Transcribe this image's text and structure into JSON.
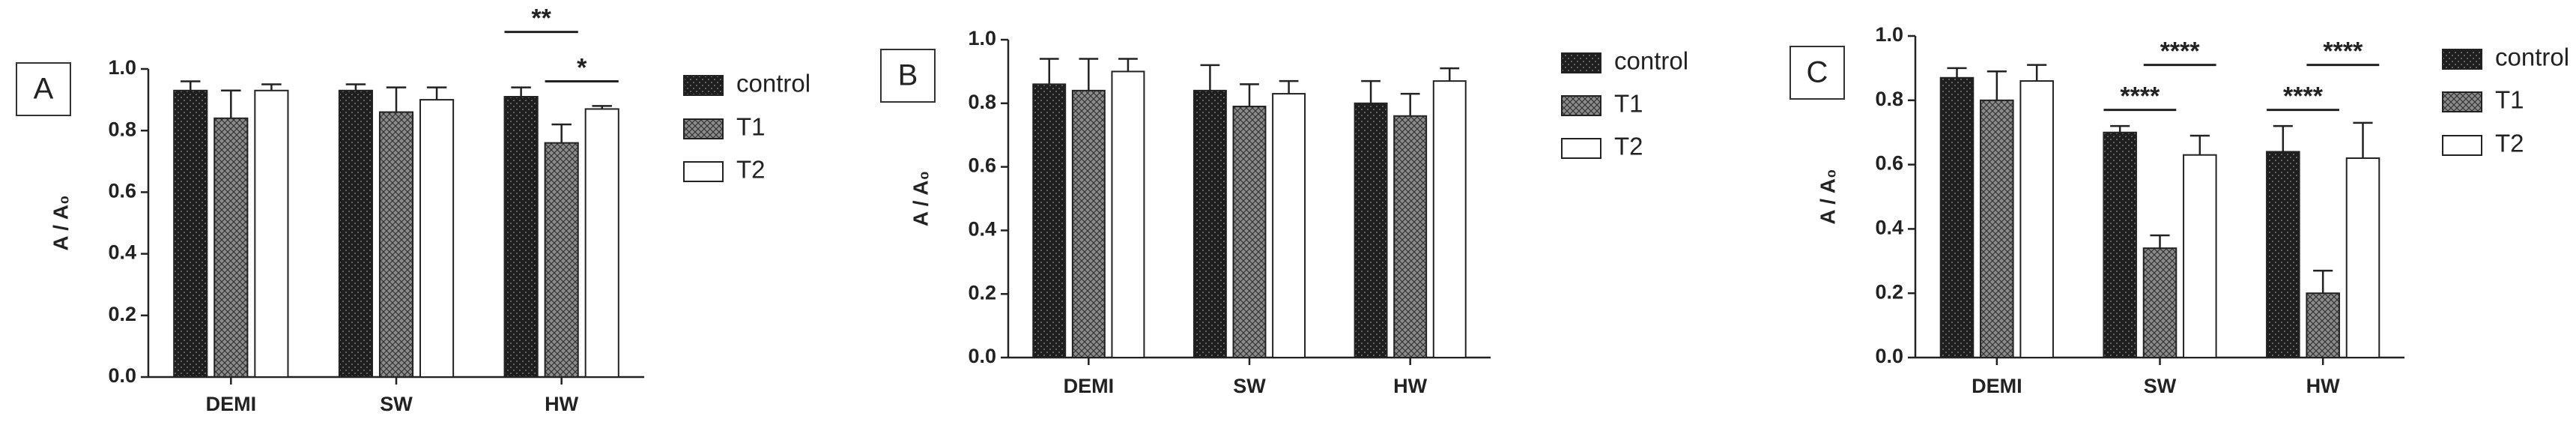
{
  "chart_data": [
    {
      "type": "bar",
      "label": "A",
      "ylabel": "A / A₀",
      "categories": [
        "DEMI",
        "SW",
        "HW"
      ],
      "series": [
        {
          "name": "control",
          "color": "#1e1e1e",
          "values": [
            0.93,
            0.93,
            0.91
          ],
          "errors": [
            0.03,
            0.02,
            0.03
          ]
        },
        {
          "name": "T1",
          "color": "#8c8c8c",
          "values": [
            0.84,
            0.86,
            0.76
          ],
          "errors": [
            0.09,
            0.08,
            0.06
          ]
        },
        {
          "name": "T2",
          "color": "#ffffff",
          "values": [
            0.93,
            0.9,
            0.87
          ],
          "errors": [
            0.02,
            0.04,
            0.01
          ]
        }
      ],
      "ylim": [
        0,
        1
      ],
      "yticks": [
        {
          "value": 0,
          "label": "0.0"
        },
        0.2,
        0.4,
        0.6,
        0.8,
        {
          "value": 1,
          "label": "1.0"
        }
      ],
      "annotations": [
        "**",
        "*"
      ]
    },
    {
      "type": "bar",
      "label": "B",
      "ylabel": "A / A₀",
      "categories": [
        "DEMI",
        "SW",
        "HW"
      ],
      "series": [
        {
          "name": "control",
          "color": "#1e1e1e",
          "values": [
            0.86,
            0.84,
            0.8
          ],
          "errors": [
            0.08,
            0.08,
            0.07
          ]
        },
        {
          "name": "T1",
          "color": "#8c8c8c",
          "values": [
            0.84,
            0.79,
            0.76
          ],
          "errors": [
            0.1,
            0.07,
            0.07
          ]
        },
        {
          "name": "T2",
          "color": "#ffffff",
          "values": [
            0.9,
            0.83,
            0.87
          ],
          "errors": [
            0.04,
            0.04,
            0.04
          ]
        }
      ],
      "ylim": [
        0,
        1
      ],
      "yticks": [
        {
          "value": 0,
          "label": "0.0"
        },
        0.2,
        0.4,
        0.6,
        0.8,
        {
          "value": 1,
          "label": "1.0"
        }
      ],
      "annotations": []
    },
    {
      "type": "bar",
      "label": "C",
      "ylabel": "A / A₀",
      "categories": [
        "DEMI",
        "SW",
        "HW"
      ],
      "series": [
        {
          "name": "control",
          "color": "#1e1e1e",
          "values": [
            0.87,
            0.7,
            0.64
          ],
          "errors": [
            0.03,
            0.02,
            0.08
          ]
        },
        {
          "name": "T1",
          "color": "#8c8c8c",
          "values": [
            0.8,
            0.34,
            0.2
          ],
          "errors": [
            0.09,
            0.04,
            0.07
          ]
        },
        {
          "name": "T2",
          "color": "#ffffff",
          "values": [
            0.86,
            0.63,
            0.62
          ],
          "errors": [
            0.05,
            0.06,
            0.11
          ]
        }
      ],
      "ylim": [
        0,
        1
      ],
      "yticks": [
        {
          "value": 0,
          "label": "0.0"
        },
        0.2,
        0.4,
        0.6,
        0.8,
        {
          "value": 1,
          "label": "1.0"
        }
      ],
      "annotations": [
        "****",
        "****",
        "****",
        "****"
      ]
    }
  ]
}
